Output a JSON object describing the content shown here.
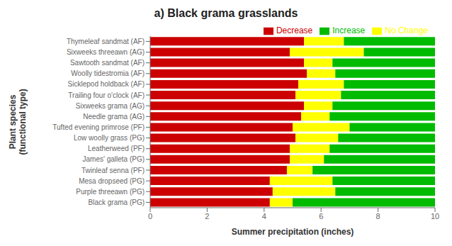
{
  "chart_data": {
    "type": "bar",
    "orientation": "horizontal",
    "stacked": true,
    "title": "a) Black grama grasslands",
    "xlabel": "Summer precipitation (inches)",
    "ylabel": "Plant species\n(functional type)",
    "categories": [
      "Black grama (PG)",
      "Purple threeawn (PG)",
      "Mesa dropseed (PG)",
      "Twinleaf senna (PF)",
      "James' galleta (PG)",
      "Leatherweed (PF)",
      "Low woolly grass (PG)",
      "Tufted evening primrose (PF)",
      "Needle grama (AG)",
      "Sixweeks grama (AG)",
      "Trailing four o'clock (AF)",
      "Sicklepod holdback (AF)",
      "Woolly tidestromia (AF)",
      "Sawtooth sandmat (AF)",
      "Sixweeks threeawn (AG)",
      "Thymeleaf sandmat (AF)"
    ],
    "series": [
      {
        "name": "Decrease",
        "color": "#cc0000",
        "values": [
          4.2,
          4.3,
          4.2,
          4.8,
          4.9,
          4.9,
          5.1,
          5.0,
          5.3,
          5.4,
          5.1,
          5.2,
          5.5,
          5.4,
          4.9,
          5.4
        ]
      },
      {
        "name": "No Change",
        "color": "#ffff00",
        "values": [
          0.8,
          2.2,
          2.2,
          0.9,
          1.2,
          1.4,
          1.5,
          2.0,
          1.0,
          1.0,
          1.6,
          1.6,
          1.0,
          1.0,
          2.6,
          1.4
        ]
      },
      {
        "name": "Increase",
        "color": "#00bb00",
        "values": [
          5.0,
          3.5,
          3.6,
          4.3,
          3.9,
          3.7,
          3.4,
          3.0,
          3.7,
          3.6,
          3.3,
          3.2,
          3.5,
          3.6,
          2.5,
          3.2
        ]
      }
    ],
    "xlim": [
      0,
      10
    ],
    "xticks": [
      0,
      2,
      4,
      6,
      8,
      10
    ],
    "legend": "upper right"
  }
}
